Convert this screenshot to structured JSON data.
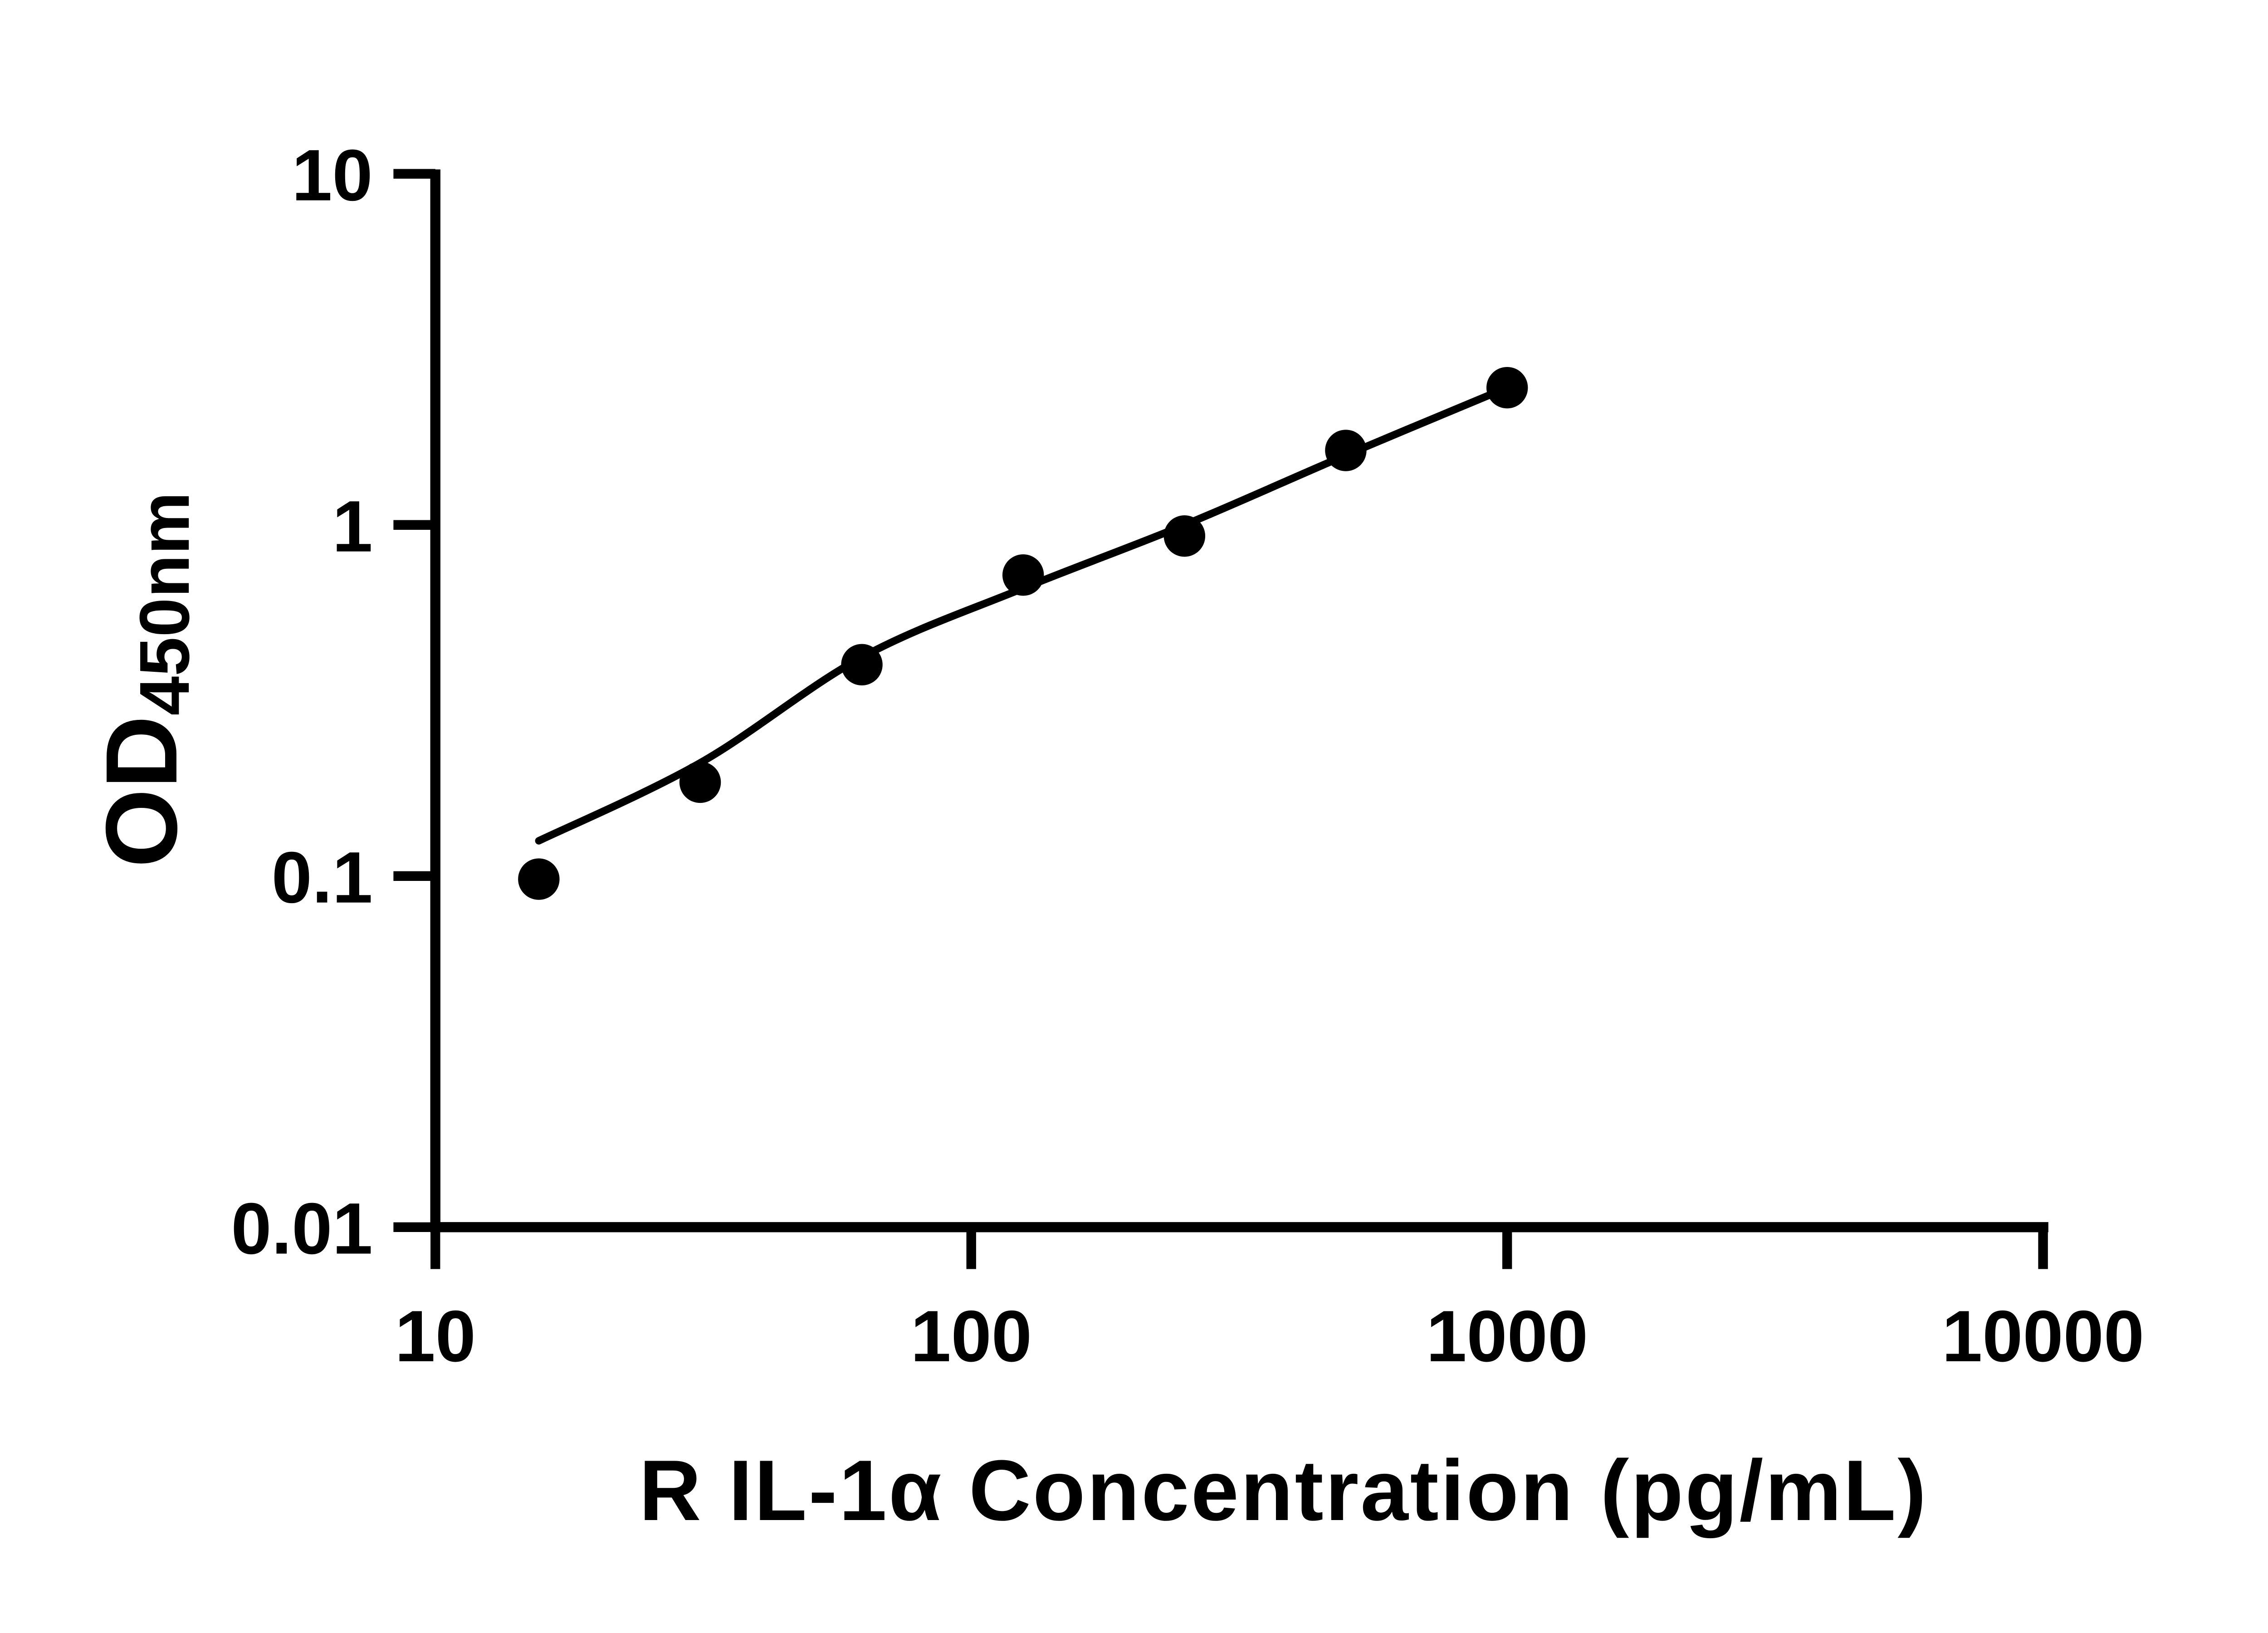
{
  "figure": {
    "description": "ELISA standard curve, log-log scatter with fitted line"
  },
  "colors": {
    "background": "#ffffff",
    "axis": "#000000",
    "text": "#000000",
    "marker": "#000000",
    "curve": "#000000"
  },
  "chart_data": {
    "type": "scatter",
    "title": "",
    "xlabel": "R IL-1α Concentration (pg/mL)",
    "ylabel_main": "OD",
    "ylabel_sub": "450nm",
    "x_scale": "log",
    "y_scale": "log",
    "xlim": [
      10,
      10000
    ],
    "ylim": [
      0.01,
      10
    ],
    "x_tick_values": [
      10,
      100,
      1000,
      10000
    ],
    "x_tick_labels": [
      "10",
      "100",
      "1000",
      "10000"
    ],
    "y_tick_values": [
      10,
      1,
      0.1,
      0.01
    ],
    "y_tick_labels": [
      "10",
      "1",
      "0.1",
      "0.01"
    ],
    "grid": false,
    "legend": "none",
    "series": [
      {
        "name": "standard-points",
        "type": "scatter",
        "marker": "filled-circle",
        "color": "#000000",
        "x": [
          15.6,
          31.2,
          62.5,
          125,
          250,
          500,
          1000
        ],
        "y": [
          0.098,
          0.185,
          0.4,
          0.72,
          0.93,
          1.63,
          2.46
        ]
      },
      {
        "name": "fit-curve",
        "type": "line",
        "color": "#000000",
        "x": [
          15.6,
          31.2,
          62.5,
          125,
          250,
          500,
          1000
        ],
        "y": [
          0.126,
          0.21,
          0.42,
          0.66,
          1.0,
          1.58,
          2.46
        ]
      }
    ]
  }
}
